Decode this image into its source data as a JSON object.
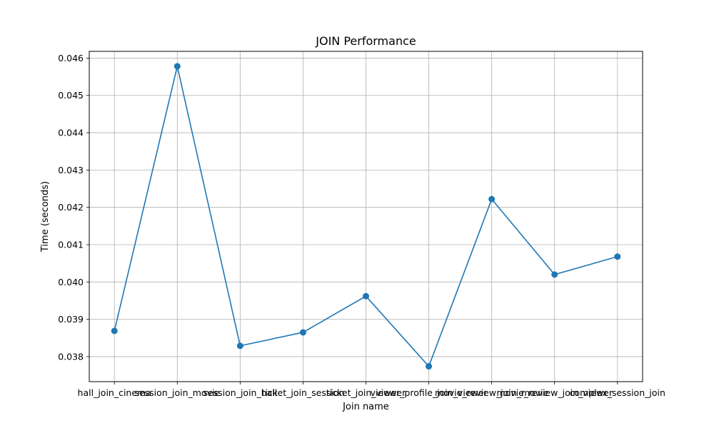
{
  "chart_data": {
    "type": "line",
    "title": "JOIN Performance",
    "xlabel": "Join name",
    "ylabel": "Time (seconds)",
    "categories": [
      "hall_join_cinema",
      "session_join_movie",
      "session_join_hall",
      "ticket_join_session",
      "ticket_join_viewer",
      "viewer_profile_join_viewer",
      "movie_review_join_movie",
      "movie_review_join_viewer",
      "complex_session_join"
    ],
    "series": [
      {
        "values": [
          0.03869,
          0.04578,
          0.03829,
          0.03865,
          0.03962,
          0.03774,
          0.04222,
          0.0402,
          0.04068
        ],
        "color": "#1f77b4",
        "marker": "circle"
      }
    ],
    "yticks": [
      0.038,
      0.039,
      0.04,
      0.041,
      0.042,
      0.043,
      0.044,
      0.045,
      0.046
    ],
    "ytick_labels": [
      "0.038",
      "0.039",
      "0.040",
      "0.041",
      "0.042",
      "0.043",
      "0.044",
      "0.045",
      "0.046"
    ],
    "ylim": [
      0.03733,
      0.04618
    ],
    "grid": true,
    "legend": false
  }
}
